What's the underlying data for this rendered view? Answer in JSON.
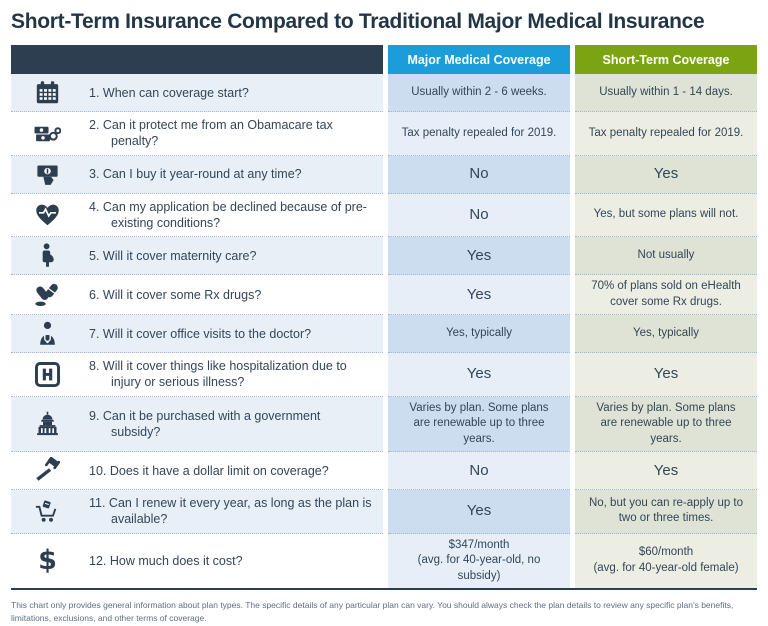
{
  "chart_data": {
    "type": "table",
    "title": "Short-Term Insurance Compared to Traditional Major Medical Insurance",
    "column_headers": {
      "major": "Major Medical Coverage",
      "short": "Short-Term Coverage"
    },
    "rows": [
      {
        "icon": "calendar-icon",
        "question": "1. When can coverage start?",
        "major": "Usually within 2 - 6 weeks.",
        "short": "Usually within 1 - 14 days."
      },
      {
        "icon": "handcuffs-money-icon",
        "question": "2. Can it protect me from an Obamacare tax penalty?",
        "major": "Tax penalty repealed for 2019.",
        "short": "Tax penalty repealed for 2019."
      },
      {
        "icon": "money-in-hand-icon",
        "question": "3. Can I buy it year-round at any time?",
        "major": "No",
        "short": "Yes"
      },
      {
        "icon": "heart-pulse-icon",
        "question": "4. Can my application be declined because of pre-existing conditions?",
        "major": "No",
        "short": "Yes, but some plans will not."
      },
      {
        "icon": "pregnant-woman-icon",
        "question": "5. Will it cover maternity care?",
        "major": "Yes",
        "short": "Not usually"
      },
      {
        "icon": "pills-icon",
        "question": "6. Will it cover some Rx drugs?",
        "major": "Yes",
        "short": "70% of plans sold on eHealth cover some Rx drugs."
      },
      {
        "icon": "doctor-icon",
        "question": "7. Will it cover office visits to the doctor?",
        "major": "Yes, typically",
        "short": "Yes, typically"
      },
      {
        "icon": "hospital-icon",
        "question": "8. Will it cover things like hospitalization due to injury or serious illness?",
        "major": "Yes",
        "short": "Yes"
      },
      {
        "icon": "capitol-icon",
        "question": "9. Can it be purchased with a government subsidy?",
        "major": "Varies by plan. Some plans are renewable up to three years.",
        "short": "Varies by plan. Some plans are renewable up to three years."
      },
      {
        "icon": "gavel-icon",
        "question": "10. Does it have a dollar limit on coverage?",
        "major": "No",
        "short": "Yes"
      },
      {
        "icon": "cart-icon",
        "question": "11. Can I renew it every year, as long as the plan is available?",
        "major": "Yes",
        "short": "No, but you can re-apply up to two or three times."
      },
      {
        "icon": "dollar-icon",
        "question": "12. How much does it cost?",
        "major": "$347/month\n(avg. for 40-year-old, no subsidy)",
        "short": "$60/month\n(avg. for 40-year-old female)"
      }
    ],
    "footnote": "This chart only provides general information about plan types. The specific details of any particular plan can vary. You should always check the plan details to review any specific plan's benefits, limitations, exclusions, and other terms of coverage.",
    "colors": {
      "header_dark": "#2c3e50",
      "header_blue": "#1b9dd9",
      "header_green": "#7ca412",
      "text": "#334658",
      "icon": "#2c3e50"
    }
  }
}
